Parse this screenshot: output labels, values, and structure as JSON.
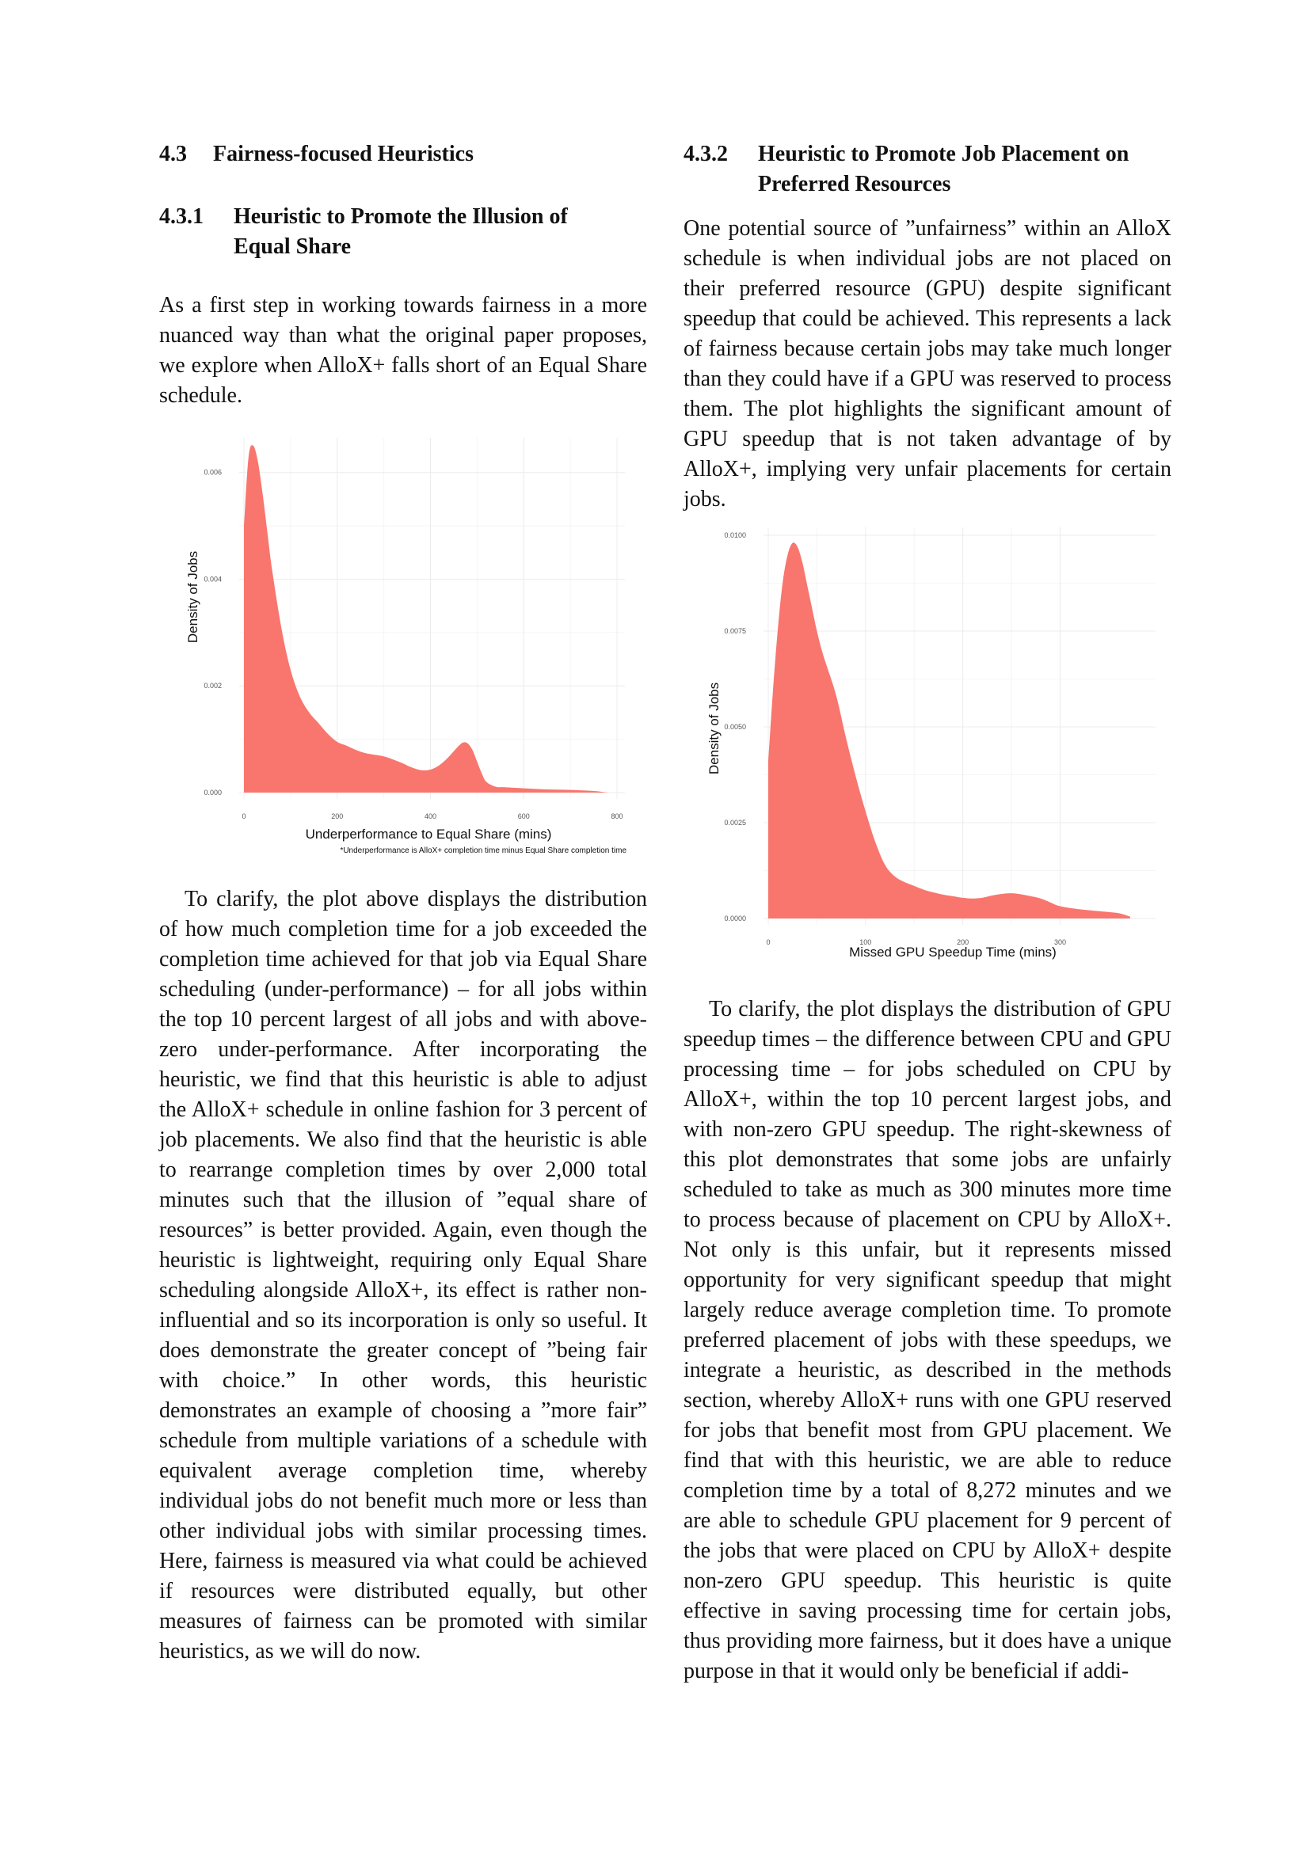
{
  "left": {
    "section": {
      "number": "4.3",
      "title": "Fairness-focused Heuristics"
    },
    "subsection": {
      "number": "4.3.1",
      "title": "Heuristic to Promote the Illusion of Equal Share"
    },
    "para1": "As a first step in working towards fairness in a more nuanced way than what the original paper proposes, we explore when AlloX+ falls short of an Equal Share schedule.",
    "para2": "To clarify, the plot above displays the distribution of how much completion time for a job exceeded the completion time achieved for that job via Equal Share scheduling (under-performance) – for all jobs within the top 10 percent largest of all jobs and with above-zero under-performance. After incorporating the heuristic, we find that this heuristic is able to adjust the AlloX+ schedule in online fashion for 3 percent of job placements. We also find that the heuristic is able to rearrange completion times by over 2,000 total minutes such that the illusion of ”equal share of resources” is better provided. Again, even though the heuristic is lightweight, requiring only Equal Share scheduling alongside AlloX+, its effect is rather non-influential and so its incorporation is only so useful. It does demonstrate the greater concept of ”being fair with choice.” In other words, this heuristic demonstrates an example of choosing a ”more fair” schedule from multiple variations of a schedule with equivalent average completion time, whereby individual jobs do not benefit much more or less than other individual jobs with similar processing times. Here, fairness is measured via what could be achieved if resources were distributed equally, but other measures of fairness can be promoted with similar heuristics, as we will do now."
  },
  "right": {
    "subsection": {
      "number": "4.3.2",
      "title": "Heuristic to Promote Job Placement on Preferred Resources"
    },
    "para1": "One potential source of ”unfairness” within an AlloX schedule is when individual jobs are not placed on their preferred resource (GPU) despite significant speedup that could be achieved. This represents a lack of fairness because certain jobs may take much longer than they could have if a GPU was reserved to process them. The plot highlights the significant amount of GPU speedup that is not taken advantage of by AlloX+, implying very unfair placements for certain jobs.",
    "para2": "To clarify, the plot displays the distribution of GPU speedup times – the difference between CPU and GPU processing time – for jobs scheduled on CPU by AlloX+, within the top 10 percent largest jobs, and with non-zero GPU speedup. The right-skewness of this plot demonstrates that some jobs are unfairly scheduled to take as much as 300 minutes more time to process because of placement on CPU by AlloX+. Not only is this unfair, but it represents missed opportunity for very significant speedup that might largely reduce average completion time. To promote preferred placement of jobs with these speedups, we integrate a heuristic, as described in the methods section, whereby AlloX+ runs with one GPU reserved for jobs that benefit most from GPU placement. We find that with this heuristic, we are able to reduce completion time by a total of 8,272 minutes and we are able to schedule GPU placement for 9 percent of the jobs that were placed on CPU by AlloX+ despite non-zero GPU speedup. This heuristic is quite effective in saving processing time for certain jobs, thus providing more fairness, but it does have a unique purpose in that it would only be beneficial if addi-"
  },
  "chart_data": [
    {
      "type": "area",
      "xlabel": "Underperformance to Equal Share (mins)",
      "ylabel": "Density of Jobs",
      "note": "*Underperformance is AlloX+ completion time minus Equal Share completion time",
      "xlim": [
        0,
        800
      ],
      "ylim": [
        0,
        0.0065
      ],
      "xticks": [
        "0",
        "200",
        "400",
        "600",
        "800"
      ],
      "yticks": [
        "0.000",
        "0.002",
        "0.004",
        "0.006"
      ],
      "ytick_values": [
        0,
        0.002,
        0.004,
        0.006
      ],
      "xtick_values": [
        0,
        200,
        400,
        600,
        800
      ],
      "color": "#f8766d",
      "x": [
        0,
        10,
        20,
        30,
        40,
        50,
        60,
        80,
        100,
        120,
        140,
        160,
        180,
        200,
        220,
        240,
        260,
        280,
        300,
        320,
        340,
        360,
        380,
        400,
        420,
        440,
        460,
        470,
        480,
        490,
        500,
        510,
        520,
        540,
        560,
        600,
        650,
        700,
        750,
        780
      ],
      "y": [
        0.005,
        0.0063,
        0.0065,
        0.0062,
        0.0056,
        0.0049,
        0.0042,
        0.0031,
        0.0023,
        0.0018,
        0.0015,
        0.0013,
        0.0011,
        0.00095,
        0.00088,
        0.0008,
        0.00074,
        0.00071,
        0.00068,
        0.00062,
        0.00055,
        0.00047,
        0.00042,
        0.00043,
        0.00052,
        0.00068,
        0.00087,
        0.00094,
        0.00092,
        0.0008,
        0.00058,
        0.00036,
        0.0002,
        0.00011,
        0.0001,
        8e-05,
        6e-05,
        5e-05,
        3e-05,
        0.0
      ]
    },
    {
      "type": "area",
      "xlabel": "Missed GPU Speedup Time (mins)",
      "ylabel": "Density of Jobs",
      "xlim": [
        0,
        390
      ],
      "ylim": [
        0,
        0.01
      ],
      "xticks": [
        "0",
        "100",
        "200",
        "300"
      ],
      "yticks": [
        "0.0000",
        "0.0025",
        "0.0050",
        "0.0075",
        "0.0100"
      ],
      "ytick_values": [
        0,
        0.0025,
        0.005,
        0.0075,
        0.01
      ],
      "xtick_values": [
        0,
        100,
        200,
        300
      ],
      "color": "#f8766d",
      "x": [
        0,
        5,
        10,
        15,
        20,
        25,
        30,
        35,
        40,
        45,
        50,
        55,
        60,
        70,
        80,
        90,
        100,
        110,
        120,
        130,
        140,
        150,
        160,
        170,
        180,
        190,
        200,
        210,
        220,
        230,
        240,
        250,
        260,
        270,
        280,
        290,
        300,
        320,
        340,
        360,
        372
      ],
      "y": [
        0.0041,
        0.006,
        0.0076,
        0.0088,
        0.0095,
        0.0098,
        0.0097,
        0.0093,
        0.0087,
        0.0081,
        0.0075,
        0.007,
        0.0066,
        0.0058,
        0.0047,
        0.0037,
        0.0028,
        0.002,
        0.0014,
        0.0011,
        0.00095,
        0.00085,
        0.00075,
        0.00068,
        0.00062,
        0.00058,
        0.00054,
        0.00052,
        0.00054,
        0.0006,
        0.00064,
        0.00066,
        0.00063,
        0.00058,
        0.00052,
        0.00042,
        0.00032,
        0.00024,
        0.00019,
        0.00014,
        5e-05
      ]
    }
  ]
}
